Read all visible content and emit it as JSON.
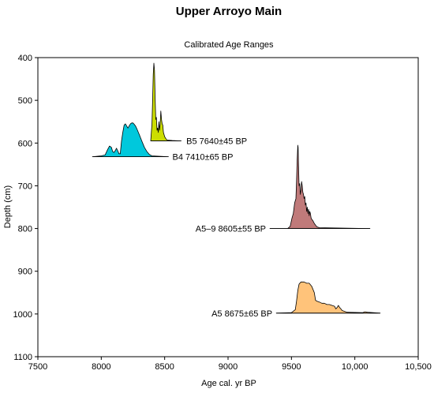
{
  "chart_data": {
    "type": "area",
    "title": "Upper Arroyo Main",
    "subtitle": "Calibrated Age Ranges",
    "xlabel": "Age cal. yr BP",
    "ylabel": "Depth (cm)",
    "xlim": [
      7500,
      10500
    ],
    "ylim": [
      1100,
      400
    ],
    "y_inverted": true,
    "x_ticks": [
      7500,
      8000,
      8500,
      9000,
      9500,
      10000,
      10500
    ],
    "x_tick_labels": [
      "7500",
      "8000",
      "8500",
      "9000",
      "9500",
      "10,000",
      "10,500"
    ],
    "y_ticks": [
      400,
      500,
      600,
      700,
      800,
      900,
      1000,
      1100
    ],
    "y_tick_labels": [
      "400",
      "500",
      "600",
      "700",
      "800",
      "900",
      "1000",
      "1100"
    ],
    "grid": false,
    "legend": "none",
    "series": [
      {
        "label": "B5 7640±45 BP",
        "color": "#ccdd00",
        "baseline_depth": 595,
        "label_age": 8640,
        "label_depth": 595,
        "range": [
          8390,
          8630
        ],
        "profile": [
          [
            8390,
            595
          ],
          [
            8400,
            555
          ],
          [
            8405,
            500
          ],
          [
            8410,
            440
          ],
          [
            8415,
            413
          ],
          [
            8420,
            430
          ],
          [
            8425,
            495
          ],
          [
            8430,
            545
          ],
          [
            8435,
            540
          ],
          [
            8440,
            570
          ],
          [
            8445,
            565
          ],
          [
            8450,
            575
          ],
          [
            8455,
            550
          ],
          [
            8460,
            570
          ],
          [
            8465,
            555
          ],
          [
            8470,
            525
          ],
          [
            8475,
            545
          ],
          [
            8480,
            555
          ],
          [
            8485,
            558
          ],
          [
            8490,
            575
          ],
          [
            8500,
            585
          ],
          [
            8510,
            590
          ],
          [
            8520,
            593
          ],
          [
            8560,
            594
          ],
          [
            8630,
            595
          ]
        ]
      },
      {
        "label": "B4 7410±65 BP",
        "color": "#00c8dc",
        "baseline_depth": 632,
        "label_age": 8530,
        "label_depth": 632,
        "range": [
          7930,
          8530
        ],
        "profile": [
          [
            7930,
            632
          ],
          [
            8000,
            630
          ],
          [
            8030,
            628
          ],
          [
            8050,
            615
          ],
          [
            8065,
            607
          ],
          [
            8080,
            610
          ],
          [
            8090,
            620
          ],
          [
            8100,
            622
          ],
          [
            8110,
            618
          ],
          [
            8120,
            612
          ],
          [
            8130,
            618
          ],
          [
            8140,
            625
          ],
          [
            8150,
            625
          ],
          [
            8160,
            595
          ],
          [
            8170,
            575
          ],
          [
            8180,
            558
          ],
          [
            8190,
            555
          ],
          [
            8200,
            560
          ],
          [
            8210,
            565
          ],
          [
            8220,
            560
          ],
          [
            8230,
            555
          ],
          [
            8240,
            553
          ],
          [
            8250,
            553
          ],
          [
            8260,
            556
          ],
          [
            8270,
            560
          ],
          [
            8280,
            566
          ],
          [
            8300,
            580
          ],
          [
            8320,
            595
          ],
          [
            8340,
            610
          ],
          [
            8360,
            620
          ],
          [
            8380,
            627
          ],
          [
            8400,
            630
          ],
          [
            8530,
            632
          ]
        ]
      },
      {
        "label": "A5–9 8605±55 BP",
        "color": "#c07a7a",
        "baseline_depth": 800,
        "label_age": 9330,
        "label_depth": 800,
        "range": [
          9330,
          10120
        ],
        "profile": [
          [
            9330,
            800
          ],
          [
            9470,
            800
          ],
          [
            9490,
            795
          ],
          [
            9505,
            775
          ],
          [
            9515,
            765
          ],
          [
            9525,
            740
          ],
          [
            9535,
            730
          ],
          [
            9540,
            690
          ],
          [
            9545,
            640
          ],
          [
            9550,
            605
          ],
          [
            9553,
            610
          ],
          [
            9556,
            650
          ],
          [
            9560,
            700
          ],
          [
            9565,
            695
          ],
          [
            9570,
            720
          ],
          [
            9575,
            710
          ],
          [
            9580,
            690
          ],
          [
            9585,
            700
          ],
          [
            9590,
            715
          ],
          [
            9595,
            720
          ],
          [
            9600,
            730
          ],
          [
            9605,
            725
          ],
          [
            9610,
            745
          ],
          [
            9615,
            740
          ],
          [
            9620,
            760
          ],
          [
            9625,
            750
          ],
          [
            9630,
            765
          ],
          [
            9635,
            755
          ],
          [
            9640,
            770
          ],
          [
            9645,
            760
          ],
          [
            9650,
            765
          ],
          [
            9655,
            775
          ],
          [
            9660,
            778
          ],
          [
            9670,
            782
          ],
          [
            9680,
            788
          ],
          [
            9690,
            792
          ],
          [
            9700,
            796
          ],
          [
            9720,
            798
          ],
          [
            10120,
            800
          ]
        ]
      },
      {
        "label": "A5 8675±65 BP",
        "color": "#ffc37a",
        "baseline_depth": 998,
        "label_age": 9380,
        "label_depth": 998,
        "range": [
          9380,
          10200
        ],
        "profile": [
          [
            9380,
            998
          ],
          [
            9500,
            997
          ],
          [
            9530,
            990
          ],
          [
            9540,
            970
          ],
          [
            9550,
            945
          ],
          [
            9560,
            930
          ],
          [
            9575,
            925
          ],
          [
            9600,
            925
          ],
          [
            9620,
            928
          ],
          [
            9640,
            928
          ],
          [
            9660,
            935
          ],
          [
            9680,
            950
          ],
          [
            9690,
            968
          ],
          [
            9700,
            970
          ],
          [
            9720,
            972
          ],
          [
            9740,
            975
          ],
          [
            9760,
            975
          ],
          [
            9780,
            978
          ],
          [
            9800,
            978
          ],
          [
            9820,
            980
          ],
          [
            9840,
            982
          ],
          [
            9850,
            988
          ],
          [
            9860,
            985
          ],
          [
            9870,
            980
          ],
          [
            9880,
            985
          ],
          [
            9890,
            988
          ],
          [
            9900,
            992
          ],
          [
            9940,
            996
          ],
          [
            10060,
            997
          ],
          [
            10080,
            995
          ],
          [
            10100,
            996
          ],
          [
            10200,
            998
          ]
        ]
      }
    ]
  }
}
